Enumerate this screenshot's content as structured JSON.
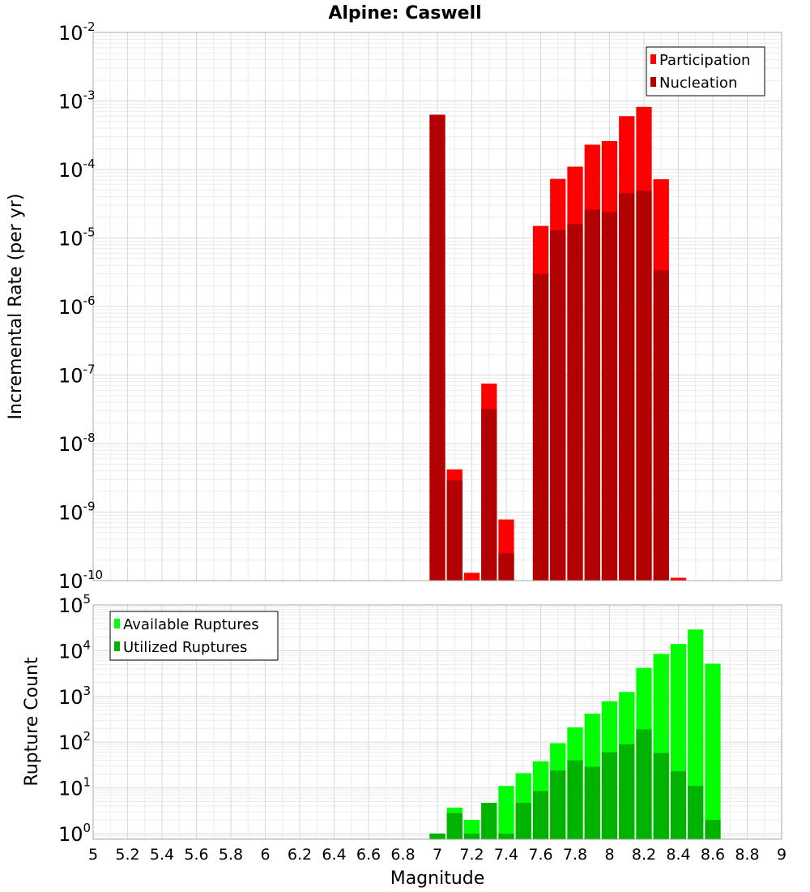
{
  "chart_data": [
    {
      "type": "bar",
      "title": "Alpine: Caswell",
      "xlabel": "",
      "ylabel": "Incremental Rate (per yr)",
      "yscale": "log",
      "ylim": [
        1e-10,
        0.01
      ],
      "xlim": [
        5,
        9
      ],
      "bin_width": 0.1,
      "grid": true,
      "legend_position": "top-right",
      "x": [
        7.0,
        7.1,
        7.2,
        7.3,
        7.4,
        7.5,
        7.6,
        7.7,
        7.8,
        7.9,
        8.0,
        8.1,
        8.2,
        8.3,
        8.4
      ],
      "series": [
        {
          "name": "Participation",
          "color": "#ff0000",
          "values": [
            0.00063,
            4.2e-09,
            1.3e-10,
            7.5e-08,
            7.8e-10,
            null,
            1.5e-05,
            7.3e-05,
            0.00011,
            0.00023,
            0.00026,
            0.0006,
            0.00082,
            7.2e-05,
            1.1e-10
          ]
        },
        {
          "name": "Nucleation",
          "color": "#b30000",
          "values": [
            0.00063,
            2.9e-09,
            null,
            3.2e-08,
            2.5e-10,
            null,
            3e-06,
            1.3e-05,
            1.6e-05,
            2.6e-05,
            2.4e-05,
            4.5e-05,
            4.9e-05,
            3.4e-06,
            null
          ]
        }
      ]
    },
    {
      "type": "bar",
      "title": "",
      "xlabel": "Magnitude",
      "ylabel": "Rupture Count",
      "yscale": "log",
      "ylim": [
        0.75,
        100000
      ],
      "xlim": [
        5,
        9
      ],
      "bin_width": 0.1,
      "grid": true,
      "legend_position": "top-left",
      "x": [
        7.0,
        7.1,
        7.2,
        7.3,
        7.4,
        7.5,
        7.6,
        7.7,
        7.8,
        7.9,
        8.0,
        8.1,
        8.2,
        8.3,
        8.4,
        8.5,
        8.6
      ],
      "series": [
        {
          "name": "Available Ruptures",
          "color": "#00ff00",
          "values": [
            1,
            3.7,
            2,
            4.7,
            11,
            21,
            38,
            95,
            210,
            420,
            780,
            1250,
            4200,
            8500,
            14000,
            29000,
            5200
          ]
        },
        {
          "name": "Utilized Ruptures",
          "color": "#00b300",
          "values": [
            1,
            2.8,
            1,
            4.7,
            1,
            4.7,
            8.5,
            24,
            40,
            29,
            60,
            90,
            190,
            58,
            23,
            11,
            2
          ]
        }
      ],
      "xticks": [
        "5",
        "5.2",
        "5.4",
        "5.6",
        "5.8",
        "6",
        "6.2",
        "6.4",
        "6.6",
        "6.8",
        "7",
        "7.2",
        "7.4",
        "7.6",
        "7.8",
        "8",
        "8.2",
        "8.4",
        "8.6",
        "8.8",
        "9"
      ]
    }
  ]
}
